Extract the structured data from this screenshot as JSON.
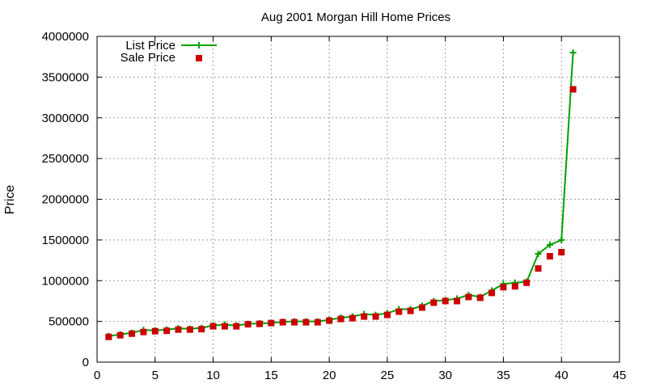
{
  "chart_data": {
    "type": "line",
    "title": "Aug 2001 Morgan Hill Home Prices",
    "xlabel": "",
    "ylabel": "Price",
    "xlim": [
      0,
      45
    ],
    "ylim": [
      0,
      4000000
    ],
    "xticks": [
      0,
      5,
      10,
      15,
      20,
      25,
      30,
      35,
      40,
      45
    ],
    "yticks": [
      0,
      500000,
      1000000,
      1500000,
      2000000,
      2500000,
      3000000,
      3500000,
      4000000
    ],
    "grid": true,
    "legend_position": "top-left",
    "x": [
      1,
      2,
      3,
      4,
      5,
      6,
      7,
      8,
      9,
      10,
      11,
      12,
      13,
      14,
      15,
      16,
      17,
      18,
      19,
      20,
      21,
      22,
      23,
      24,
      25,
      26,
      27,
      28,
      29,
      30,
      31,
      32,
      33,
      34,
      35,
      36,
      37,
      38,
      39,
      40,
      41
    ],
    "series": [
      {
        "name": "List Price",
        "style": "line-with-plus",
        "color": "#00a000",
        "values": [
          320000,
          340000,
          360000,
          395000,
          390000,
          400000,
          415000,
          410000,
          420000,
          450000,
          460000,
          450000,
          470000,
          475000,
          480000,
          495000,
          500000,
          500000,
          500000,
          520000,
          545000,
          560000,
          590000,
          580000,
          600000,
          650000,
          650000,
          690000,
          750000,
          760000,
          780000,
          825000,
          800000,
          880000,
          960000,
          975000,
          985000,
          1330000,
          1440000,
          1500000,
          3800000
        ]
      },
      {
        "name": "Sale Price",
        "style": "square-points",
        "color": "#cc0000",
        "values": [
          310000,
          330000,
          350000,
          370000,
          380000,
          385000,
          400000,
          400000,
          405000,
          440000,
          440000,
          440000,
          465000,
          470000,
          480000,
          490000,
          490000,
          490000,
          490000,
          510000,
          530000,
          540000,
          560000,
          560000,
          580000,
          620000,
          630000,
          670000,
          730000,
          750000,
          750000,
          800000,
          790000,
          850000,
          920000,
          930000,
          975000,
          1150000,
          1300000,
          1350000,
          3350000
        ]
      }
    ]
  }
}
